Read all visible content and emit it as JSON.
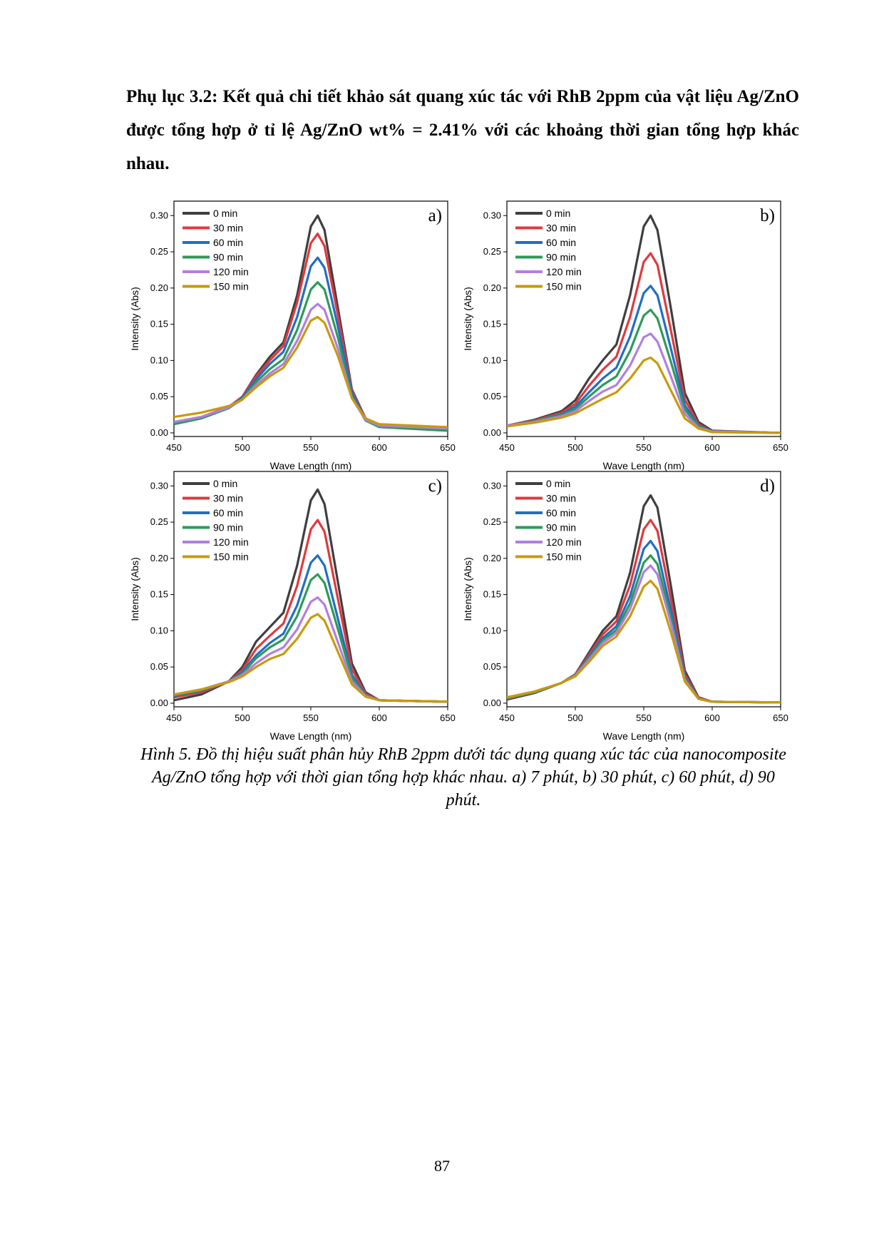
{
  "heading": "Phụ lục 3.2: Kết quả chi tiết khảo sát quang xúc tác với RhB 2ppm của vật liệu Ag/ZnO được tổng hợp ở tỉ lệ Ag/ZnO wt% = 2.41% với các khoảng thời gian tổng hợp khác nhau.",
  "caption": "Hình 5. Đồ thị hiệu suất phân hủy RhB 2ppm dưới tác dụng quang xúc tác của nanocomposite Ag/ZnO tổng hợp với thời gian tổng hợp khác nhau. a) 7 phút, b) 30 phút, c) 60 phút, d) 90 phút.",
  "page_number": "87",
  "chart_data": [
    {
      "type": "line",
      "label": "a)",
      "xlabel": "Wave Length (nm)",
      "ylabel": "Intensity (Abs)",
      "legend": "upper left",
      "x": [
        450,
        470,
        490,
        500,
        510,
        520,
        530,
        540,
        550,
        555,
        560,
        570,
        580,
        590,
        600,
        650
      ],
      "xlim": [
        450,
        650
      ],
      "xticks": [
        450,
        500,
        550,
        600,
        650
      ],
      "ylim": [
        -0.005,
        0.32
      ],
      "yticks": [
        {
          "value": 0,
          "label": "0.00"
        },
        {
          "value": 0.05,
          "label": "0.05"
        },
        {
          "value": 0.1,
          "label": "0.10"
        },
        {
          "value": 0.15,
          "label": "0.15"
        },
        {
          "value": 0.2,
          "label": "0.20"
        },
        {
          "value": 0.25,
          "label": "0.25"
        },
        {
          "value": 0.3,
          "label": "0.30"
        }
      ],
      "series": [
        {
          "name": "0 min",
          "color": "#3f3f3f",
          "values": [
            0.013,
            0.021,
            0.035,
            0.05,
            0.08,
            0.105,
            0.125,
            0.19,
            0.285,
            0.3,
            0.28,
            0.17,
            0.06,
            0.02,
            0.01,
            0.005
          ]
        },
        {
          "name": "30 min",
          "color": "#e0393e",
          "values": [
            0.015,
            0.022,
            0.036,
            0.05,
            0.078,
            0.1,
            0.12,
            0.18,
            0.262,
            0.275,
            0.258,
            0.16,
            0.058,
            0.02,
            0.01,
            0.005
          ]
        },
        {
          "name": "60 min",
          "color": "#1f6fc6",
          "values": [
            0.014,
            0.021,
            0.035,
            0.049,
            0.074,
            0.095,
            0.112,
            0.16,
            0.23,
            0.242,
            0.228,
            0.145,
            0.055,
            0.019,
            0.009,
            0.004
          ]
        },
        {
          "name": "90 min",
          "color": "#2e9a5a",
          "values": [
            0.012,
            0.02,
            0.034,
            0.047,
            0.07,
            0.088,
            0.102,
            0.142,
            0.198,
            0.208,
            0.198,
            0.13,
            0.05,
            0.017,
            0.008,
            0.003
          ]
        },
        {
          "name": "120 min",
          "color": "#b27ee0",
          "values": [
            0.015,
            0.022,
            0.035,
            0.046,
            0.066,
            0.082,
            0.095,
            0.127,
            0.17,
            0.178,
            0.17,
            0.115,
            0.048,
            0.018,
            0.01,
            0.006
          ]
        },
        {
          "name": "150 min",
          "color": "#c89a0c",
          "values": [
            0.022,
            0.028,
            0.037,
            0.046,
            0.063,
            0.078,
            0.09,
            0.118,
            0.155,
            0.16,
            0.152,
            0.105,
            0.048,
            0.02,
            0.012,
            0.008
          ]
        }
      ]
    },
    {
      "type": "line",
      "label": "b)",
      "xlabel": "Wave Length (nm)",
      "ylabel": "Intensity (Abs)",
      "legend": "upper left",
      "x": [
        450,
        470,
        490,
        500,
        510,
        520,
        530,
        540,
        550,
        555,
        560,
        570,
        580,
        590,
        600,
        650
      ],
      "xlim": [
        450,
        650
      ],
      "xticks": [
        450,
        500,
        550,
        600,
        650
      ],
      "ylim": [
        -0.005,
        0.32
      ],
      "yticks": [
        {
          "value": 0,
          "label": "0.00"
        },
        {
          "value": 0.05,
          "label": "0.05"
        },
        {
          "value": 0.1,
          "label": "0.10"
        },
        {
          "value": 0.15,
          "label": "0.15"
        },
        {
          "value": 0.2,
          "label": "0.20"
        },
        {
          "value": 0.25,
          "label": "0.25"
        },
        {
          "value": 0.3,
          "label": "0.30"
        }
      ],
      "series": [
        {
          "name": "0 min",
          "color": "#3f3f3f",
          "values": [
            0.01,
            0.018,
            0.03,
            0.045,
            0.075,
            0.1,
            0.122,
            0.19,
            0.285,
            0.3,
            0.28,
            0.17,
            0.055,
            0.015,
            0.003,
            0.0
          ]
        },
        {
          "name": "30 min",
          "color": "#e0393e",
          "values": [
            0.01,
            0.017,
            0.028,
            0.04,
            0.065,
            0.087,
            0.105,
            0.16,
            0.236,
            0.248,
            0.232,
            0.14,
            0.046,
            0.012,
            0.002,
            0.0
          ]
        },
        {
          "name": "60 min",
          "color": "#1f6fc6",
          "values": [
            0.01,
            0.016,
            0.026,
            0.036,
            0.056,
            0.075,
            0.09,
            0.133,
            0.193,
            0.203,
            0.19,
            0.115,
            0.038,
            0.01,
            0.002,
            0.0
          ]
        },
        {
          "name": "90 min",
          "color": "#2e9a5a",
          "values": [
            0.01,
            0.016,
            0.025,
            0.033,
            0.05,
            0.066,
            0.078,
            0.113,
            0.162,
            0.17,
            0.158,
            0.097,
            0.032,
            0.009,
            0.002,
            0.0
          ]
        },
        {
          "name": "120 min",
          "color": "#b27ee0",
          "values": [
            0.01,
            0.015,
            0.023,
            0.03,
            0.044,
            0.057,
            0.066,
            0.093,
            0.132,
            0.137,
            0.126,
            0.077,
            0.026,
            0.007,
            0.002,
            0.0
          ]
        },
        {
          "name": "150 min",
          "color": "#c89a0c",
          "values": [
            0.009,
            0.014,
            0.021,
            0.027,
            0.037,
            0.047,
            0.056,
            0.075,
            0.1,
            0.104,
            0.096,
            0.058,
            0.02,
            0.006,
            0.001,
            0.0
          ]
        }
      ]
    },
    {
      "type": "line",
      "label": "c)",
      "xlabel": "Wave Length (nm)",
      "ylabel": "Intensity (Abs)",
      "legend": "upper left",
      "x": [
        450,
        470,
        490,
        500,
        510,
        520,
        530,
        540,
        550,
        555,
        560,
        570,
        580,
        590,
        600,
        650
      ],
      "xlim": [
        450,
        650
      ],
      "xticks": [
        450,
        500,
        550,
        600,
        650
      ],
      "ylim": [
        -0.005,
        0.32
      ],
      "yticks": [
        {
          "value": 0,
          "label": "0.00"
        },
        {
          "value": 0.05,
          "label": "0.05"
        },
        {
          "value": 0.1,
          "label": "0.10"
        },
        {
          "value": 0.15,
          "label": "0.15"
        },
        {
          "value": 0.2,
          "label": "0.20"
        },
        {
          "value": 0.25,
          "label": "0.25"
        },
        {
          "value": 0.3,
          "label": "0.30"
        }
      ],
      "series": [
        {
          "name": "0 min",
          "color": "#3f3f3f",
          "values": [
            0.004,
            0.012,
            0.03,
            0.05,
            0.085,
            0.105,
            0.125,
            0.19,
            0.28,
            0.295,
            0.275,
            0.165,
            0.055,
            0.015,
            0.004,
            0.002
          ]
        },
        {
          "name": "30 min",
          "color": "#e0393e",
          "values": [
            0.008,
            0.015,
            0.03,
            0.046,
            0.075,
            0.093,
            0.11,
            0.162,
            0.24,
            0.253,
            0.237,
            0.142,
            0.047,
            0.013,
            0.004,
            0.002
          ]
        },
        {
          "name": "60 min",
          "color": "#1f6fc6",
          "values": [
            0.01,
            0.017,
            0.03,
            0.043,
            0.066,
            0.083,
            0.096,
            0.135,
            0.194,
            0.204,
            0.19,
            0.115,
            0.039,
            0.011,
            0.004,
            0.002
          ]
        },
        {
          "name": "90 min",
          "color": "#2e9a5a",
          "values": [
            0.011,
            0.018,
            0.03,
            0.041,
            0.062,
            0.077,
            0.088,
            0.12,
            0.17,
            0.178,
            0.166,
            0.101,
            0.035,
            0.01,
            0.004,
            0.002
          ]
        },
        {
          "name": "120 min",
          "color": "#b27ee0",
          "values": [
            0.012,
            0.019,
            0.03,
            0.039,
            0.055,
            0.068,
            0.077,
            0.102,
            0.14,
            0.146,
            0.136,
            0.083,
            0.03,
            0.01,
            0.004,
            0.002
          ]
        },
        {
          "name": "150 min",
          "color": "#c89a0c",
          "values": [
            0.012,
            0.019,
            0.029,
            0.037,
            0.05,
            0.061,
            0.068,
            0.089,
            0.118,
            0.123,
            0.114,
            0.07,
            0.026,
            0.009,
            0.004,
            0.002
          ]
        }
      ]
    },
    {
      "type": "line",
      "label": "d)",
      "xlabel": "Wave Length (nm)",
      "ylabel": "Intensity (Abs)",
      "legend": "upper left",
      "x": [
        450,
        470,
        490,
        500,
        510,
        520,
        530,
        540,
        550,
        555,
        560,
        570,
        580,
        590,
        600,
        650
      ],
      "xlim": [
        450,
        650
      ],
      "xticks": [
        450,
        500,
        550,
        600,
        650
      ],
      "ylim": [
        -0.005,
        0.32
      ],
      "yticks": [
        {
          "value": 0,
          "label": "0.00"
        },
        {
          "value": 0.05,
          "label": "0.05"
        },
        {
          "value": 0.1,
          "label": "0.10"
        },
        {
          "value": 0.15,
          "label": "0.15"
        },
        {
          "value": 0.2,
          "label": "0.20"
        },
        {
          "value": 0.25,
          "label": "0.25"
        },
        {
          "value": 0.3,
          "label": "0.30"
        }
      ],
      "series": [
        {
          "name": "0 min",
          "color": "#3f3f3f",
          "values": [
            0.005,
            0.014,
            0.028,
            0.04,
            0.07,
            0.1,
            0.12,
            0.18,
            0.272,
            0.287,
            0.27,
            0.16,
            0.045,
            0.008,
            0.002,
            0.001
          ]
        },
        {
          "name": "30 min",
          "color": "#e0393e",
          "values": [
            0.006,
            0.015,
            0.028,
            0.04,
            0.067,
            0.095,
            0.113,
            0.163,
            0.24,
            0.253,
            0.238,
            0.142,
            0.04,
            0.007,
            0.002,
            0.001
          ]
        },
        {
          "name": "60 min",
          "color": "#1f6fc6",
          "values": [
            0.007,
            0.015,
            0.028,
            0.039,
            0.064,
            0.09,
            0.106,
            0.148,
            0.213,
            0.224,
            0.21,
            0.127,
            0.036,
            0.006,
            0.002,
            0.001
          ]
        },
        {
          "name": "90 min",
          "color": "#2e9a5a",
          "values": [
            0.007,
            0.015,
            0.028,
            0.039,
            0.062,
            0.087,
            0.101,
            0.138,
            0.194,
            0.204,
            0.192,
            0.117,
            0.034,
            0.006,
            0.002,
            0.001
          ]
        },
        {
          "name": "120 min",
          "color": "#b27ee0",
          "values": [
            0.008,
            0.016,
            0.028,
            0.038,
            0.06,
            0.083,
            0.097,
            0.13,
            0.181,
            0.19,
            0.178,
            0.109,
            0.032,
            0.006,
            0.002,
            0.001
          ]
        },
        {
          "name": "150 min",
          "color": "#c89a0c",
          "values": [
            0.008,
            0.016,
            0.028,
            0.037,
            0.057,
            0.079,
            0.092,
            0.12,
            0.161,
            0.169,
            0.158,
            0.097,
            0.03,
            0.006,
            0.002,
            0.001
          ]
        }
      ]
    }
  ]
}
